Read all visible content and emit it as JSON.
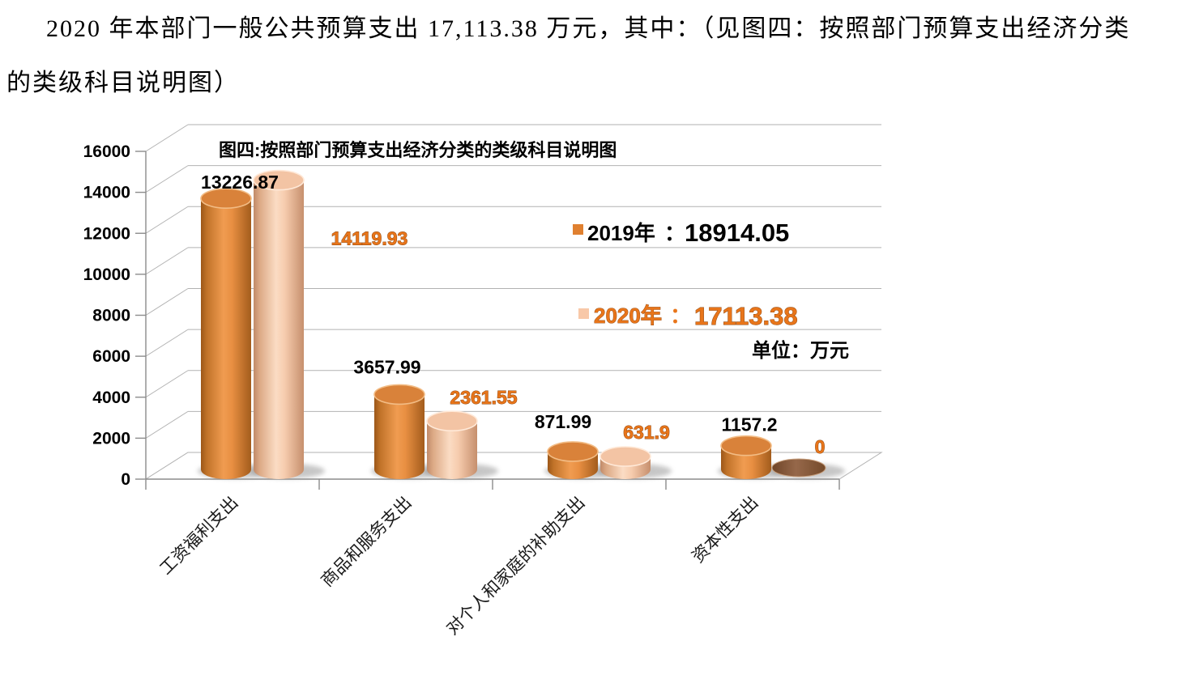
{
  "paragraph": {
    "line1": "2020 年本部门一般公共预算支出 17,113.38 万元，其中：（见图四：按照部门预算支出经济分类",
    "line2": "的类级科目说明图）"
  },
  "chart_data": {
    "type": "bar",
    "style": "3d-cylinder",
    "title": "图四:按照部门预算支出经济分类的类级科目说明图",
    "unit_label": "单位：万元",
    "categories": [
      "工资福利支出",
      "商品和服务支出",
      "对个人和家庭的补助支出",
      "资本性支出"
    ],
    "series": [
      {
        "name": "2019年",
        "total_label": "18914.05",
        "color": "#E08030",
        "zero_color": "#7D563C",
        "values": [
          13226.87,
          3657.99,
          871.99,
          1157.2
        ],
        "labels": [
          "13226.87",
          "3657.99",
          "871.99",
          "1157.2"
        ],
        "label_color": "#000000"
      },
      {
        "name": "2020年",
        "total_label": "17113.38",
        "color": "#F8C8A8",
        "zero_color": "#7D563C",
        "values": [
          14119.93,
          2361.55,
          631.9,
          0
        ],
        "labels": [
          "14119.93",
          "2361.55",
          "631.9",
          "0"
        ],
        "label_color": "#E8751A"
      }
    ],
    "y_ticks": [
      0,
      2000,
      4000,
      6000,
      8000,
      10000,
      12000,
      14000,
      16000
    ],
    "ylim": [
      0,
      16000
    ],
    "grid": true,
    "legend_position": "center-right",
    "legend_separator": "：",
    "accent_orange": "#E8751A",
    "grid_color": "#b2b2b2",
    "axis_color": "#8c8c8c",
    "layout_hints": {
      "label_dx_2019": [
        17,
        -15,
        -12,
        4
      ],
      "label_dy_2019": [
        9,
        -5,
        -8,
        3
      ],
      "label_offsets_2020": [
        [
          112,
          80
        ],
        [
          39,
          -21
        ],
        [
          26,
          -22
        ],
        [
          26,
          -20
        ]
      ]
    }
  }
}
